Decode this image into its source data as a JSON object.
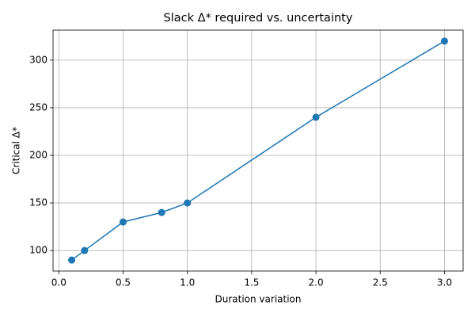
{
  "chart_data": {
    "type": "line",
    "title": "Slack Δ* required vs. uncertainty",
    "x_label": "Duration variation",
    "y_label": "Critical Δ*",
    "x": [
      0.1,
      0.2,
      0.5,
      0.8,
      1.0,
      2.0,
      3.0
    ],
    "values": [
      90,
      100,
      130,
      140,
      150,
      240,
      320
    ],
    "color": "#1f77b4",
    "marker": true,
    "xlim": [
      -0.045,
      3.145
    ],
    "xticks": [
      {
        "value": 0,
        "label": "0.0"
      },
      0.5,
      {
        "value": 1,
        "label": "1.0"
      },
      1.5,
      {
        "value": 2,
        "label": "2.0"
      },
      2.5,
      {
        "value": 3,
        "label": "3.0"
      }
    ],
    "ylim": [
      78.5,
      331.5
    ],
    "yticks": [
      100,
      150,
      200,
      250,
      300
    ],
    "grid": true
  }
}
